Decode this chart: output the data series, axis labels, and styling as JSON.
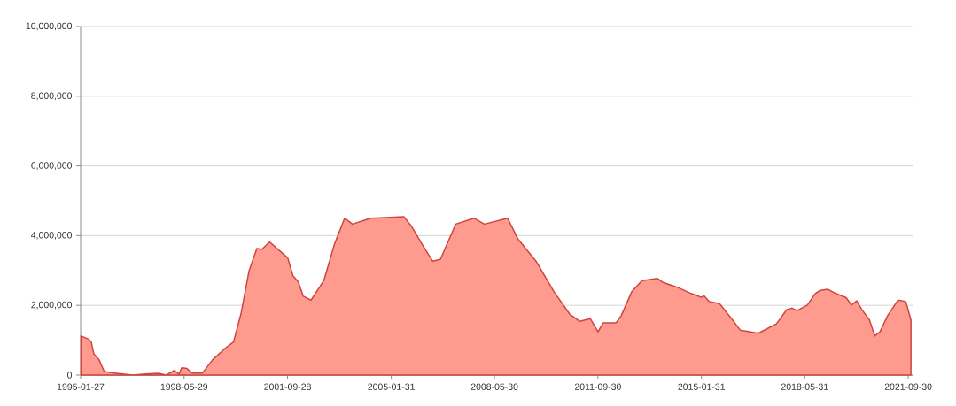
{
  "chart_data": {
    "type": "area",
    "x": [
      "1995-02",
      "1995-05",
      "1995-06",
      "1995-07",
      "1995-09",
      "1995-11",
      "1996-03",
      "1996-10",
      "1997-03",
      "1997-08",
      "1997-11",
      "1998-02",
      "1998-04",
      "1998-05",
      "1998-07",
      "1998-09",
      "1999-01",
      "1999-05",
      "1999-10",
      "2000-01",
      "2000-04",
      "2000-07",
      "2000-10",
      "2000-12",
      "2001-03",
      "2001-10",
      "2001-12",
      "2002-02",
      "2002-04",
      "2002-07",
      "2002-12",
      "2003-04",
      "2003-08",
      "2003-11",
      "2004-06",
      "2005-07",
      "2005-10",
      "2006-02",
      "2006-06",
      "2006-09",
      "2007-03",
      "2007-10",
      "2008-02",
      "2008-11",
      "2009-03",
      "2009-10",
      "2010-05",
      "2010-11",
      "2011-03",
      "2011-07",
      "2011-10",
      "2011-12",
      "2012-05",
      "2012-07",
      "2012-11",
      "2013-03",
      "2013-09",
      "2013-11",
      "2014-05",
      "2014-10",
      "2015-02",
      "2015-03",
      "2015-05",
      "2015-09",
      "2016-02",
      "2016-05",
      "2016-12",
      "2017-07",
      "2017-11",
      "2018-01",
      "2018-03",
      "2018-07",
      "2018-10",
      "2018-12",
      "2019-03",
      "2019-06",
      "2019-10",
      "2019-12",
      "2020-02",
      "2020-04",
      "2020-07",
      "2020-09",
      "2020-11",
      "2021-02",
      "2021-06",
      "2021-09",
      "2021-11"
    ],
    "series": [
      {
        "color": "#fe9a8e",
        "values": [
          1120000,
          1030000,
          950000,
          610000,
          440000,
          100000,
          60000,
          0,
          30000,
          50000,
          0,
          130000,
          30000,
          210000,
          190000,
          60000,
          60000,
          440000,
          780000,
          950000,
          1790000,
          2980000,
          3630000,
          3610000,
          3820000,
          3360000,
          2850000,
          2680000,
          2260000,
          2150000,
          2720000,
          3740000,
          4500000,
          4330000,
          4500000,
          4540000,
          4250000,
          3740000,
          3270000,
          3320000,
          4330000,
          4500000,
          4330000,
          4500000,
          3910000,
          3270000,
          2390000,
          1750000,
          1540000,
          1620000,
          1240000,
          1500000,
          1500000,
          1710000,
          2390000,
          2710000,
          2770000,
          2660000,
          2510000,
          2340000,
          2230000,
          2280000,
          2110000,
          2050000,
          1580000,
          1290000,
          1200000,
          1470000,
          1880000,
          1920000,
          1850000,
          2010000,
          2340000,
          2430000,
          2460000,
          2340000,
          2220000,
          2010000,
          2130000,
          1880000,
          1580000,
          1120000,
          1240000,
          1710000,
          2150000,
          2110000,
          1580000
        ]
      }
    ],
    "xlim": [
      "1995-01-27",
      "2021-12"
    ],
    "xticks": [
      "1995-01-27",
      "1998-05-29",
      "2001-09-28",
      "2005-01-31",
      "2008-05-30",
      "2011-09-30",
      "2015-01-31",
      "2018-05-31",
      "2021-09-30"
    ],
    "ylim": [
      0,
      10000000
    ],
    "yticks": [
      {
        "value": 0,
        "label": "0"
      },
      {
        "value": 2000000,
        "label": "2,000,000"
      },
      {
        "value": 4000000,
        "label": "4,000,000"
      },
      {
        "value": 6000000,
        "label": "6,000,000"
      },
      {
        "value": 8000000,
        "label": "8,000,000"
      },
      {
        "value": 10000000,
        "label": "10,000,000"
      }
    ],
    "grid": "y",
    "marker": "none"
  }
}
